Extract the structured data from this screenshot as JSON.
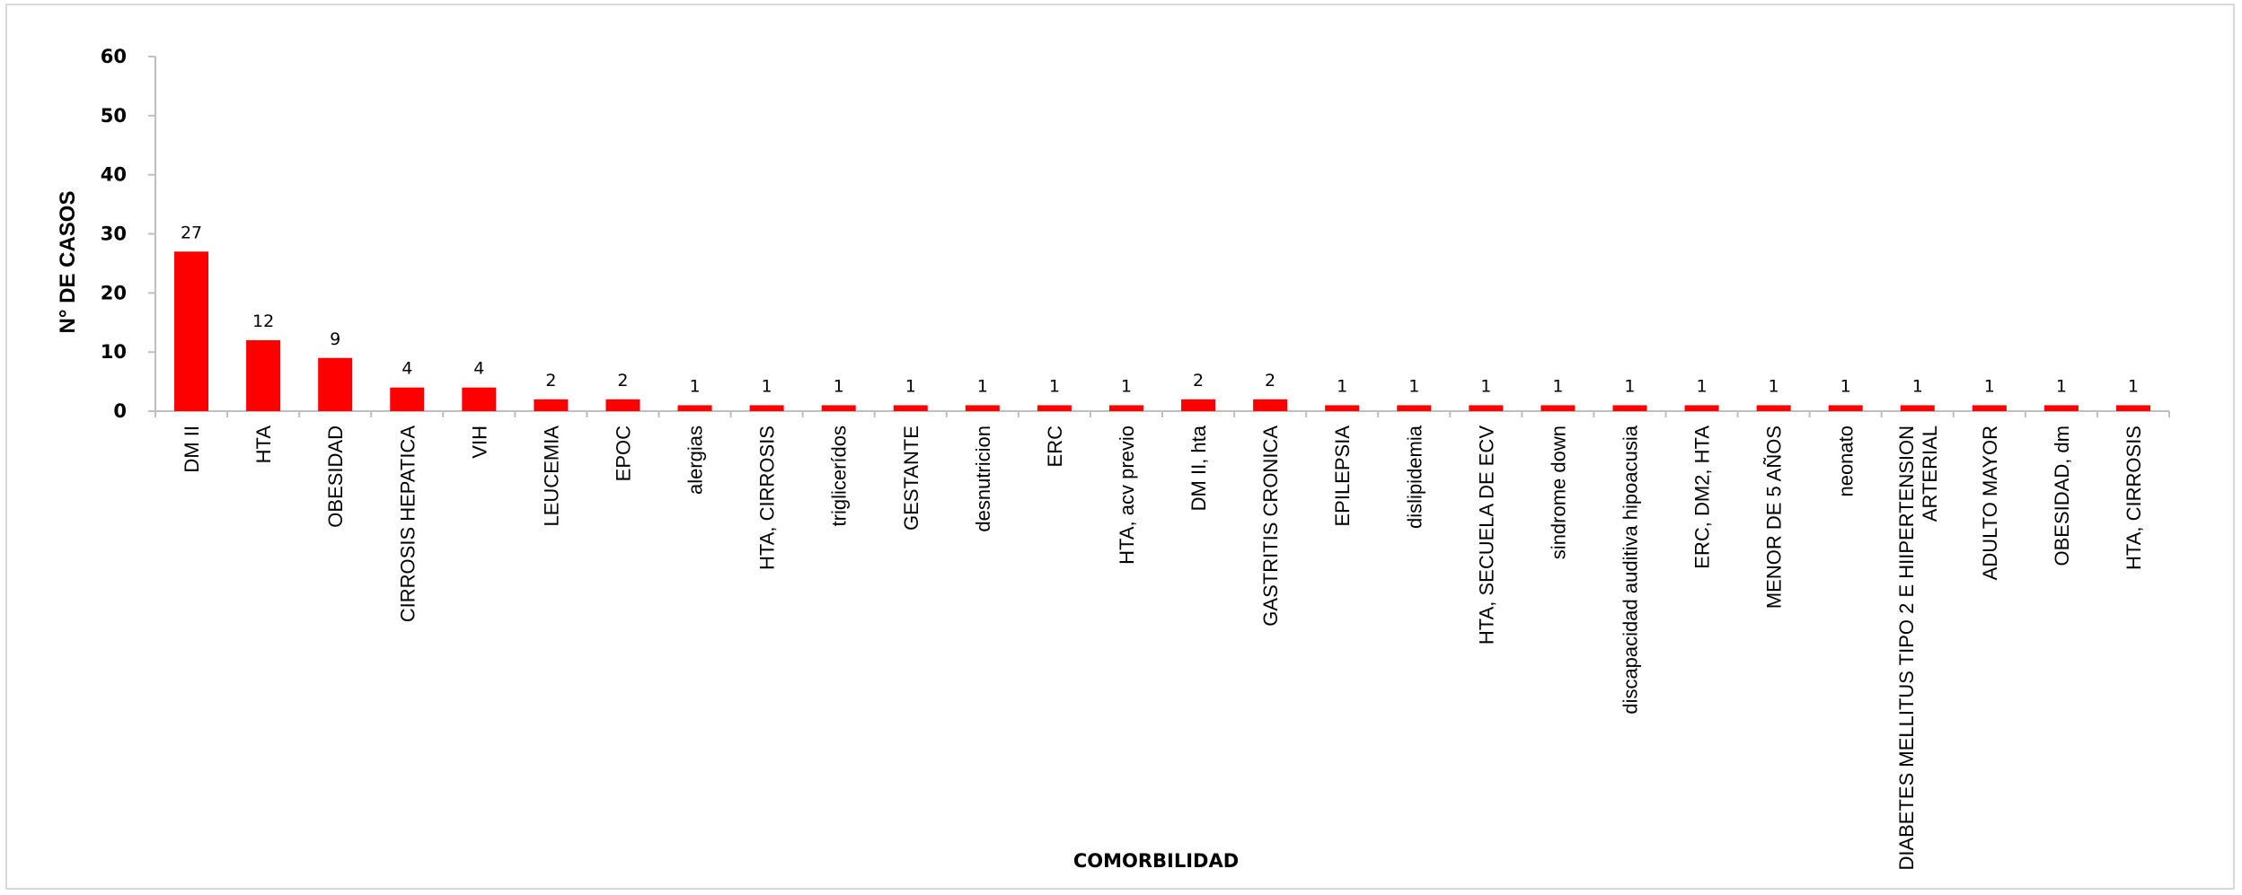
{
  "chart_data": {
    "type": "bar",
    "categories": [
      "DM II",
      "HTA",
      "OBESIDAD",
      "CIRROSIS HEPATICA",
      "VIH",
      "LEUCEMIA",
      "EPOC",
      "alergias",
      "HTA, CIRROSIS",
      "triglicerídos",
      "GESTANTE",
      "desnutricion",
      "ERC",
      "HTA, acv previo",
      "DM II, hta",
      "GASTRITIS CRONICA",
      "EPILEPSIA",
      "dislipidemia",
      "HTA, SECUELA DE ECV",
      "sindrome down",
      "discapacidad auditiva  hipoacusia",
      "ERC, DM2, HTA",
      "MENOR  DE 5 AÑOS",
      "neonato",
      "DIABETES MELLITUS TIPO 2 E HIIPERTENSION ARTERIAL",
      "ADULTO MAYOR",
      "OBESIDAD, dm",
      "HTA, CIRROSIS"
    ],
    "category_lines": [
      [
        "DM II"
      ],
      [
        "HTA"
      ],
      [
        "OBESIDAD"
      ],
      [
        "CIRROSIS HEPATICA"
      ],
      [
        "VIH"
      ],
      [
        "LEUCEMIA"
      ],
      [
        "EPOC"
      ],
      [
        "alergias"
      ],
      [
        "HTA, CIRROSIS"
      ],
      [
        "triglicerídos"
      ],
      [
        "GESTANTE"
      ],
      [
        "desnutricion"
      ],
      [
        "ERC"
      ],
      [
        "HTA, acv previo"
      ],
      [
        "DM II, hta"
      ],
      [
        "GASTRITIS CRONICA"
      ],
      [
        "EPILEPSIA"
      ],
      [
        "dislipidemia"
      ],
      [
        "HTA, SECUELA DE ECV"
      ],
      [
        "sindrome down"
      ],
      [
        "discapacidad auditiva  hipoacusia"
      ],
      [
        "ERC, DM2, HTA"
      ],
      [
        "MENOR  DE 5 AÑOS"
      ],
      [
        "neonato"
      ],
      [
        "DIABETES MELLITUS TIPO 2 E HIIPERTENSION",
        "ARTERIAL"
      ],
      [
        "ADULTO MAYOR"
      ],
      [
        "OBESIDAD, dm"
      ],
      [
        "HTA, CIRROSIS"
      ]
    ],
    "values": [
      27,
      12,
      9,
      4,
      4,
      2,
      2,
      1,
      1,
      1,
      1,
      1,
      1,
      1,
      2,
      2,
      1,
      1,
      1,
      1,
      1,
      1,
      1,
      1,
      1,
      1,
      1,
      1
    ],
    "title": "",
    "xlabel": "COMORBILIDAD",
    "ylabel": "N° DE CASOS",
    "ylim": [
      0,
      60
    ],
    "yticks": [
      0,
      10,
      20,
      30,
      40,
      50,
      60
    ],
    "grid": false,
    "legend": "none",
    "bar_color": "#ff0000",
    "data_labels": true
  }
}
